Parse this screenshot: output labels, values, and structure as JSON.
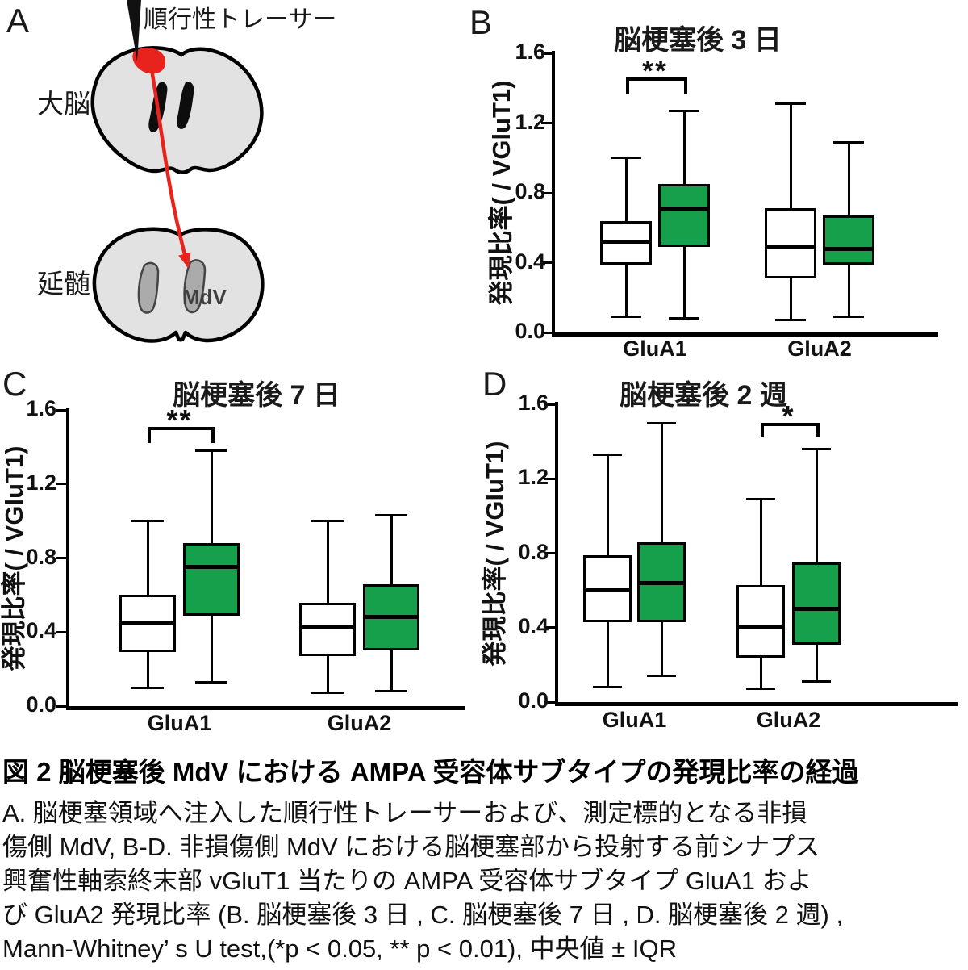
{
  "panels": {
    "A": {
      "label": "A",
      "tracer_label": "順行性トレーサー",
      "cerebrum_label": "大脳",
      "medulla_label": "延髄",
      "target_label": "MdV"
    },
    "B": {
      "label": "B"
    },
    "C": {
      "label": "C"
    },
    "D": {
      "label": "D"
    }
  },
  "colors": {
    "green": "#17a04b",
    "red": "#e8231d",
    "brain_gray": "#e2e2e2",
    "region_gray": "#ababab",
    "black": "#0d0d0d"
  },
  "caption": {
    "title": "図 2 脳梗塞後 MdV における AMPA 受容体サブタイプの発現比率の経過",
    "lines": [
      "A. 脳梗塞領域へ注入した順行性トレーサーおよび、測定標的となる非損",
      "傷側 MdV, B-D. 非損傷側 MdV における脳梗塞部から投射する前シナプス",
      "興奮性軸索終末部 vGluT1 当たりの AMPA 受容体サブタイプ GluA1 およ",
      "び GluA2 発現比率 (B. 脳梗塞後 3 日 , C. 脳梗塞後 7 日 , D. 脳梗塞後 2 週) ,",
      "Mann-Whitney’ s U test,(*p < 0.05, ** p < 0.01), 中央値 ± IQR"
    ]
  },
  "chart_data": [
    {
      "panel": "B",
      "type": "box",
      "title": "脳梗塞後 3 日",
      "ylabel": "発現比率( / VGluT1)",
      "ylim": [
        0.0,
        1.6
      ],
      "yticks": [
        0.0,
        0.4,
        0.8,
        1.2,
        1.6
      ],
      "categories": [
        "GluA1",
        "GluA2"
      ],
      "series": [
        {
          "name": "white",
          "color": "#ffffff",
          "boxes": [
            {
              "category": "GluA1",
              "whisker_low": 0.09,
              "q1": 0.39,
              "median": 0.52,
              "q3": 0.64,
              "whisker_high": 1.0
            },
            {
              "category": "GluA2",
              "whisker_low": 0.07,
              "q1": 0.31,
              "median": 0.49,
              "q3": 0.71,
              "whisker_high": 1.31
            }
          ]
        },
        {
          "name": "green",
          "color": "#17a04b",
          "boxes": [
            {
              "category": "GluA1",
              "whisker_low": 0.08,
              "q1": 0.49,
              "median": 0.71,
              "q3": 0.85,
              "whisker_high": 1.27
            },
            {
              "category": "GluA2",
              "whisker_low": 0.09,
              "q1": 0.39,
              "median": 0.48,
              "q3": 0.67,
              "whisker_high": 1.09
            }
          ]
        }
      ],
      "significance": {
        "category": "GluA1",
        "label": "**"
      }
    },
    {
      "panel": "C",
      "type": "box",
      "title": "脳梗塞後 7 日",
      "ylabel": "発現比率( / VGluT1)",
      "ylim": [
        0.0,
        1.6
      ],
      "yticks": [
        0.0,
        0.4,
        0.8,
        1.2,
        1.6
      ],
      "categories": [
        "GluA1",
        "GluA2"
      ],
      "series": [
        {
          "name": "white",
          "color": "#ffffff",
          "boxes": [
            {
              "category": "GluA1",
              "whisker_low": 0.1,
              "q1": 0.29,
              "median": 0.45,
              "q3": 0.6,
              "whisker_high": 1.0
            },
            {
              "category": "GluA2",
              "whisker_low": 0.07,
              "q1": 0.27,
              "median": 0.43,
              "q3": 0.56,
              "whisker_high": 1.0
            }
          ]
        },
        {
          "name": "green",
          "color": "#17a04b",
          "boxes": [
            {
              "category": "GluA1",
              "whisker_low": 0.13,
              "q1": 0.49,
              "median": 0.75,
              "q3": 0.88,
              "whisker_high": 1.38
            },
            {
              "category": "GluA2",
              "whisker_low": 0.08,
              "q1": 0.3,
              "median": 0.48,
              "q3": 0.66,
              "whisker_high": 1.03
            }
          ]
        }
      ],
      "significance": {
        "category": "GluA1",
        "label": "**"
      }
    },
    {
      "panel": "D",
      "type": "box",
      "title": "脳梗塞後 2 週",
      "ylabel": "発現比率( / VGluT1)",
      "ylim": [
        0.0,
        1.6
      ],
      "yticks": [
        0.0,
        0.4,
        0.8,
        1.2,
        1.6
      ],
      "categories": [
        "GluA1",
        "GluA2"
      ],
      "series": [
        {
          "name": "white",
          "color": "#ffffff",
          "boxes": [
            {
              "category": "GluA1",
              "whisker_low": 0.08,
              "q1": 0.43,
              "median": 0.6,
              "q3": 0.79,
              "whisker_high": 1.33
            },
            {
              "category": "GluA2",
              "whisker_low": 0.07,
              "q1": 0.24,
              "median": 0.4,
              "q3": 0.63,
              "whisker_high": 1.09
            }
          ]
        },
        {
          "name": "green",
          "color": "#17a04b",
          "boxes": [
            {
              "category": "GluA1",
              "whisker_low": 0.14,
              "q1": 0.43,
              "median": 0.64,
              "q3": 0.86,
              "whisker_high": 1.5
            },
            {
              "category": "GluA2",
              "whisker_low": 0.11,
              "q1": 0.31,
              "median": 0.5,
              "q3": 0.75,
              "whisker_high": 1.36
            }
          ]
        }
      ],
      "significance": {
        "category": "GluA2",
        "label": "*"
      }
    }
  ]
}
